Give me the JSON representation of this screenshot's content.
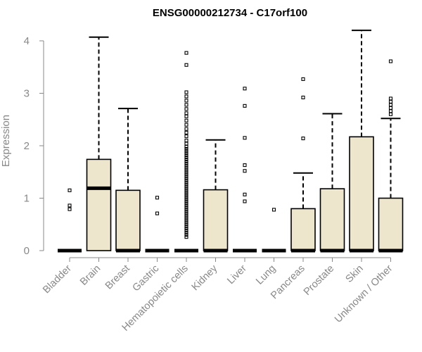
{
  "chart_data": {
    "type": "box",
    "title": "ENSG00000212734 - C17orf100",
    "xlabel": "",
    "ylabel": "Expression",
    "ylim": [
      0,
      4.2
    ],
    "yticks": [
      0,
      1,
      2,
      3,
      4
    ],
    "grid": false,
    "box_fill": "#ede6cc",
    "categories": [
      "Bladder",
      "Brain",
      "Breast",
      "Gastric",
      "Hematopoietic cells",
      "Kidney",
      "Liver",
      "Lung",
      "Pancreas",
      "Prostate",
      "Skin",
      "Unknown / Other"
    ],
    "boxes": [
      {
        "min": 0,
        "q1": 0,
        "median": 0,
        "q3": 0,
        "max": 0,
        "outliers": [
          0.79,
          0.86,
          1.15
        ]
      },
      {
        "min": 0,
        "q1": 0,
        "median": 1.19,
        "q3": 1.74,
        "max": 4.07,
        "outliers": []
      },
      {
        "min": 0,
        "q1": 0,
        "median": 0,
        "q3": 1.15,
        "max": 2.71,
        "outliers": []
      },
      {
        "min": 0,
        "q1": 0,
        "median": 0,
        "q3": 0,
        "max": 0,
        "outliers": [
          0.71,
          1.01
        ]
      },
      {
        "min": 0,
        "q1": 0,
        "median": 0,
        "q3": 0,
        "max": 0,
        "outliers": [
          0.26,
          0.3,
          0.34,
          0.38,
          0.42,
          0.46,
          0.5,
          0.54,
          0.58,
          0.62,
          0.66,
          0.7,
          0.74,
          0.78,
          0.82,
          0.86,
          0.9,
          0.94,
          0.98,
          1.02,
          1.06,
          1.1,
          1.14,
          1.18,
          1.22,
          1.26,
          1.3,
          1.34,
          1.38,
          1.42,
          1.46,
          1.5,
          1.54,
          1.58,
          1.62,
          1.66,
          1.7,
          1.74,
          1.78,
          1.82,
          1.86,
          1.9,
          1.94,
          1.98,
          2.04,
          2.1,
          2.18,
          2.25,
          2.32,
          2.4,
          2.48,
          2.56,
          2.62,
          2.7,
          2.78,
          2.86,
          2.94,
          3.02,
          3.54,
          3.77
        ]
      },
      {
        "min": 0,
        "q1": 0,
        "median": 0,
        "q3": 1.16,
        "max": 2.11,
        "outliers": []
      },
      {
        "min": 0,
        "q1": 0,
        "median": 0,
        "q3": 0,
        "max": 0,
        "outliers": [
          0.94,
          1.07,
          1.52,
          1.63,
          2.15,
          2.76,
          3.09
        ]
      },
      {
        "min": 0,
        "q1": 0,
        "median": 0,
        "q3": 0,
        "max": 0,
        "outliers": [
          0.78
        ]
      },
      {
        "min": 0,
        "q1": 0,
        "median": 0,
        "q3": 0.8,
        "max": 1.48,
        "outliers": [
          2.14,
          2.92,
          3.27
        ]
      },
      {
        "min": 0,
        "q1": 0,
        "median": 0,
        "q3": 1.18,
        "max": 2.61,
        "outliers": []
      },
      {
        "min": 0,
        "q1": 0,
        "median": 0,
        "q3": 2.17,
        "max": 4.2,
        "outliers": []
      },
      {
        "min": 0,
        "q1": 0,
        "median": 0,
        "q3": 1.0,
        "max": 2.52,
        "outliers": [
          2.6,
          2.66,
          2.72,
          2.78,
          2.84,
          2.9,
          3.61
        ]
      }
    ]
  }
}
